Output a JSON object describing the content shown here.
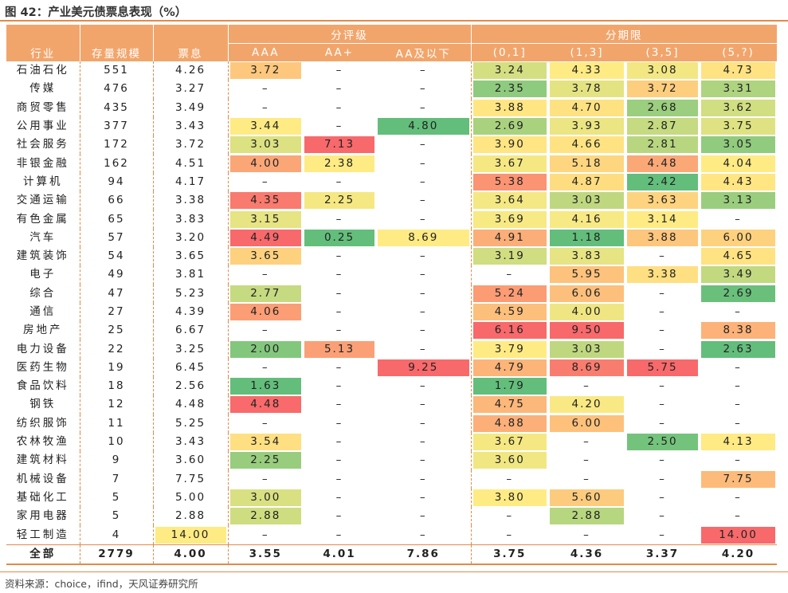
{
  "title": "图 42：产业美元债票息表现（%）",
  "source": "资料来源：choice，ifind，天风证券研究所",
  "chart_data": {
    "type": "table",
    "group_headers": {
      "rating": "分评级",
      "term": "分期限"
    },
    "columns": [
      "行业",
      "存量规模",
      "票息",
      "AAA",
      "AA+",
      "AA及以下",
      "(0,1]",
      "(1,3]",
      "(3,5]",
      "(5,?)"
    ],
    "rows": [
      [
        "石油石化",
        "551",
        "4.26",
        "3.72",
        "–",
        "–",
        "3.24",
        "4.33",
        "3.08",
        "4.73"
      ],
      [
        "传媒",
        "476",
        "3.27",
        "–",
        "–",
        "–",
        "2.35",
        "3.78",
        "3.72",
        "3.31"
      ],
      [
        "商贸零售",
        "435",
        "3.49",
        "–",
        "–",
        "–",
        "3.88",
        "4.70",
        "2.68",
        "3.62"
      ],
      [
        "公用事业",
        "377",
        "3.43",
        "3.44",
        "–",
        "4.80",
        "2.69",
        "3.93",
        "2.87",
        "3.75"
      ],
      [
        "社会服务",
        "172",
        "3.72",
        "3.03",
        "7.13",
        "–",
        "3.90",
        "4.66",
        "2.81",
        "3.05"
      ],
      [
        "非银金融",
        "162",
        "4.51",
        "4.00",
        "2.38",
        "–",
        "3.67",
        "5.18",
        "4.48",
        "4.04"
      ],
      [
        "计算机",
        "94",
        "4.17",
        "–",
        "–",
        "–",
        "5.38",
        "4.87",
        "2.42",
        "4.43"
      ],
      [
        "交通运输",
        "66",
        "3.38",
        "4.35",
        "2.25",
        "–",
        "3.64",
        "3.03",
        "3.63",
        "3.13"
      ],
      [
        "有色金属",
        "65",
        "3.83",
        "3.15",
        "–",
        "–",
        "3.69",
        "4.16",
        "3.14",
        "–"
      ],
      [
        "汽车",
        "57",
        "3.20",
        "4.49",
        "0.25",
        "8.69",
        "4.91",
        "1.18",
        "3.88",
        "6.00"
      ],
      [
        "建筑装饰",
        "54",
        "3.65",
        "3.65",
        "–",
        "–",
        "3.19",
        "3.83",
        "–",
        "4.65"
      ],
      [
        "电子",
        "49",
        "3.81",
        "–",
        "–",
        "–",
        "–",
        "5.95",
        "3.38",
        "3.49"
      ],
      [
        "综合",
        "47",
        "5.23",
        "2.77",
        "–",
        "–",
        "5.24",
        "6.06",
        "–",
        "2.69"
      ],
      [
        "通信",
        "27",
        "4.39",
        "4.06",
        "–",
        "–",
        "4.59",
        "4.00",
        "–",
        "–"
      ],
      [
        "房地产",
        "25",
        "6.67",
        "–",
        "–",
        "–",
        "6.16",
        "9.50",
        "–",
        "8.38"
      ],
      [
        "电力设备",
        "22",
        "3.25",
        "2.00",
        "5.13",
        "–",
        "3.79",
        "3.03",
        "–",
        "2.63"
      ],
      [
        "医药生物",
        "19",
        "6.45",
        "–",
        "–",
        "9.25",
        "4.79",
        "8.69",
        "5.75",
        "–"
      ],
      [
        "食品饮料",
        "18",
        "2.56",
        "1.63",
        "–",
        "–",
        "1.79",
        "–",
        "–",
        "–"
      ],
      [
        "钢铁",
        "12",
        "4.48",
        "4.48",
        "–",
        "–",
        "4.75",
        "4.20",
        "–",
        "–"
      ],
      [
        "纺织服饰",
        "11",
        "5.25",
        "–",
        "–",
        "–",
        "4.88",
        "6.00",
        "–",
        "–"
      ],
      [
        "农林牧渔",
        "10",
        "3.43",
        "3.54",
        "–",
        "–",
        "3.67",
        "–",
        "2.50",
        "4.13"
      ],
      [
        "建筑材料",
        "9",
        "3.60",
        "2.25",
        "–",
        "–",
        "3.60",
        "–",
        "–",
        "–"
      ],
      [
        "机械设备",
        "7",
        "7.75",
        "–",
        "–",
        "–",
        "–",
        "–",
        "–",
        "7.75"
      ],
      [
        "基础化工",
        "5",
        "5.00",
        "3.00",
        "–",
        "–",
        "3.80",
        "5.60",
        "–",
        "–"
      ],
      [
        "家用电器",
        "5",
        "2.88",
        "2.88",
        "–",
        "–",
        "–",
        "2.88",
        "–",
        "–"
      ],
      [
        "轻工制造",
        "4",
        "14.00",
        "–",
        "–",
        "–",
        "–",
        "–",
        "–",
        "14.00"
      ]
    ],
    "total": [
      "全部",
      "2779",
      "4.00",
      "3.55",
      "4.01",
      "7.86",
      "3.75",
      "4.36",
      "3.37",
      "4.20"
    ],
    "heatmap_colors": {
      "low": "#63be7b",
      "mid": "#ffeb84",
      "high": "#f8696b",
      "empty": "#ffffff"
    }
  }
}
